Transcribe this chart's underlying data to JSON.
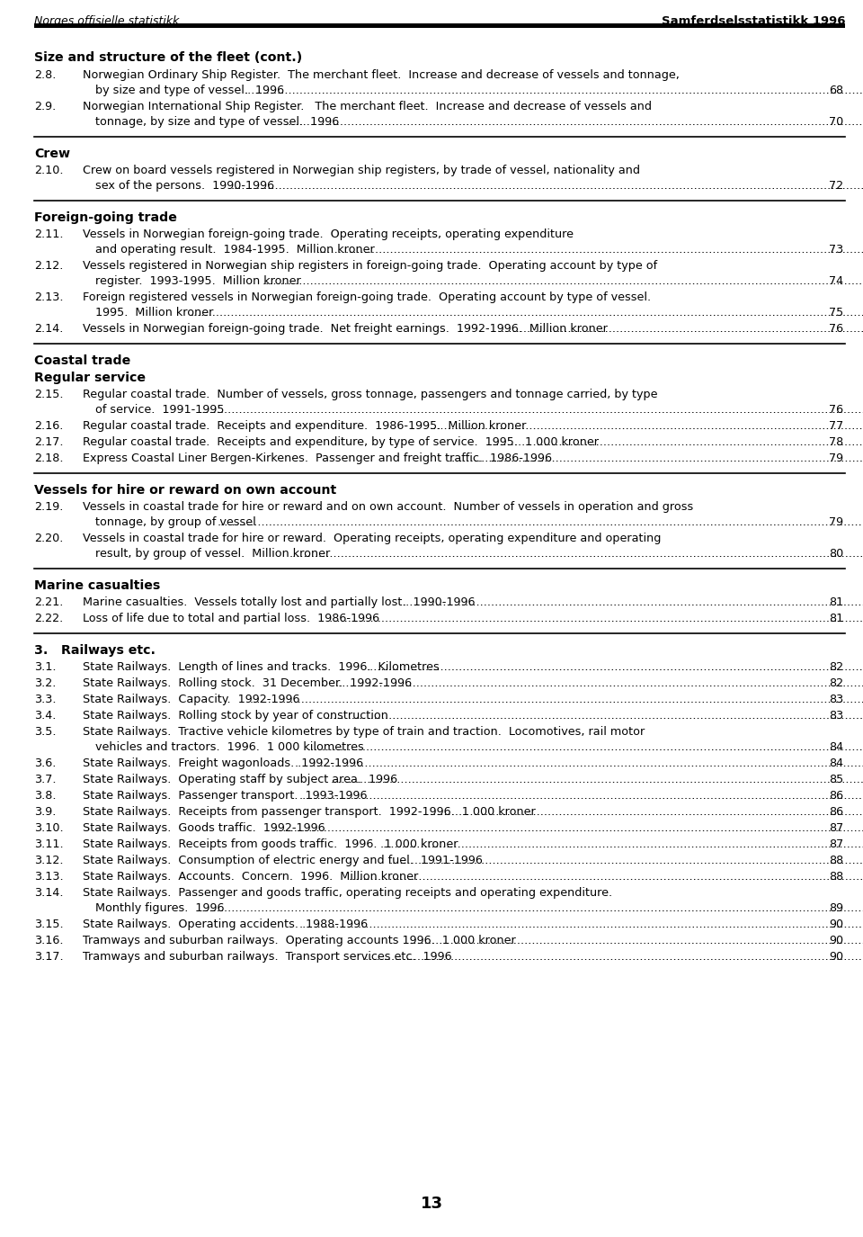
{
  "header_left": "Norges offisielle statistikk",
  "header_right": "Samferdselsstatistikk 1996",
  "page_number": "13",
  "bg_color": "#ffffff",
  "sections": [
    {
      "type": "section_header",
      "text": "Size and structure of the fleet (cont.)"
    },
    {
      "type": "entry",
      "number": "2.8.",
      "lines": [
        "Norwegian Ordinary Ship Register.  The merchant fleet.  Increase and decrease of vessels and tonnage,",
        "by size and type of vessel.  1996"
      ],
      "page": "68"
    },
    {
      "type": "entry",
      "number": "2.9.",
      "lines": [
        "Norwegian International Ship Register.   The merchant fleet.  Increase and decrease of vessels and",
        "tonnage, by size and type of vessel.  1996"
      ],
      "page": "70"
    },
    {
      "type": "separator"
    },
    {
      "type": "category_header",
      "text": "Crew"
    },
    {
      "type": "entry",
      "number": "2.10.",
      "lines": [
        "Crew on board vessels registered in Norwegian ship registers, by trade of vessel, nationality and",
        "sex of the persons.  1990-1996"
      ],
      "page": "72"
    },
    {
      "type": "separator"
    },
    {
      "type": "category_header",
      "text": "Foreign-going trade"
    },
    {
      "type": "entry",
      "number": "2.11.",
      "lines": [
        "Vessels in Norwegian foreign-going trade.  Operating receipts, operating expenditure",
        "and operating result.  1984-1995.  Million kroner"
      ],
      "page": "73"
    },
    {
      "type": "entry",
      "number": "2.12.",
      "lines": [
        "Vessels registered in Norwegian ship registers in foreign-going trade.  Operating account by type of",
        "register.  1993-1995.  Million kroner"
      ],
      "page": "74"
    },
    {
      "type": "entry",
      "number": "2.13.",
      "lines": [
        "Foreign registered vessels in Norwegian foreign-going trade.  Operating account by type of vessel.",
        "1995.  Million kroner"
      ],
      "page": "75"
    },
    {
      "type": "entry",
      "number": "2.14.",
      "lines": [
        "Vessels in Norwegian foreign-going trade.  Net freight earnings.  1992-1996.  Million kroner"
      ],
      "page": "76"
    },
    {
      "type": "separator"
    },
    {
      "type": "category_header",
      "text": "Coastal trade"
    },
    {
      "type": "category_header2",
      "text": "Regular service"
    },
    {
      "type": "entry",
      "number": "2.15.",
      "lines": [
        "Regular coastal trade.  Number of vessels, gross tonnage, passengers and tonnage carried, by type",
        "of service.  1991-1995"
      ],
      "page": "76"
    },
    {
      "type": "entry",
      "number": "2.16.",
      "lines": [
        "Regular coastal trade.  Receipts and expenditure.  1986-1995.  Million kroner"
      ],
      "page": "77"
    },
    {
      "type": "entry",
      "number": "2.17.",
      "lines": [
        "Regular coastal trade.  Receipts and expenditure, by type of service.  1995.  1 000 kroner"
      ],
      "page": "78"
    },
    {
      "type": "entry",
      "number": "2.18.",
      "lines": [
        "Express Coastal Liner Bergen-Kirkenes.  Passenger and freight traffic.  1986-1996"
      ],
      "page": "79"
    },
    {
      "type": "separator"
    },
    {
      "type": "category_header",
      "text": "Vessels for hire or reward on own account"
    },
    {
      "type": "entry",
      "number": "2.19.",
      "lines": [
        "Vessels in coastal trade for hire or reward and on own account.  Number of vessels in operation and gross",
        "tonnage, by group of vessel"
      ],
      "page": "79"
    },
    {
      "type": "entry",
      "number": "2.20.",
      "lines": [
        "Vessels in coastal trade for hire or reward.  Operating receipts, operating expenditure and operating",
        "result, by group of vessel.  Million kroner"
      ],
      "page": "80"
    },
    {
      "type": "separator"
    },
    {
      "type": "category_header",
      "text": "Marine casualties"
    },
    {
      "type": "entry",
      "number": "2.21.",
      "lines": [
        "Marine casualties.  Vessels totally lost and partially lost.  1990-1996"
      ],
      "page": "81"
    },
    {
      "type": "entry",
      "number": "2.22.",
      "lines": [
        "Loss of life due to total and partial loss.  1986-1996"
      ],
      "page": "81"
    },
    {
      "type": "separator"
    },
    {
      "type": "number_section_header",
      "number": "3.",
      "text": "Railways etc."
    },
    {
      "type": "entry",
      "number": "3.1.",
      "lines": [
        "State Railways.  Length of lines and tracks.  1996.  Kilometres"
      ],
      "page": "82"
    },
    {
      "type": "entry",
      "number": "3.2.",
      "lines": [
        "State Railways.  Rolling stock.  31 December.  1992-1996"
      ],
      "page": "82"
    },
    {
      "type": "entry",
      "number": "3.3.",
      "lines": [
        "State Railways.  Capacity.  1992-1996"
      ],
      "page": "83"
    },
    {
      "type": "entry",
      "number": "3.4.",
      "lines": [
        "State Railways.  Rolling stock by year of construction"
      ],
      "page": "83"
    },
    {
      "type": "entry",
      "number": "3.5.",
      "lines": [
        "State Railways.  Tractive vehicle kilometres by type of train and traction.  Locomotives, rail motor",
        "vehicles and tractors.  1996.  1 000 kilometres"
      ],
      "page": "84"
    },
    {
      "type": "entry",
      "number": "3.6.",
      "lines": [
        "State Railways.  Freight wagonloads.  1992-1996"
      ],
      "page": "84"
    },
    {
      "type": "entry",
      "number": "3.7.",
      "lines": [
        "State Railways.  Operating staff by subject area.  1996"
      ],
      "page": "85"
    },
    {
      "type": "entry",
      "number": "3.8.",
      "lines": [
        "State Railways.  Passenger transport.  1993-1996"
      ],
      "page": "86"
    },
    {
      "type": "entry",
      "number": "3.9.",
      "lines": [
        "State Railways.  Receipts from passenger transport.  1992-1996.  1 000 kroner"
      ],
      "page": "86"
    },
    {
      "type": "entry",
      "number": "3.10.",
      "lines": [
        "State Railways.  Goods traffic.  1992-1996"
      ],
      "page": "87"
    },
    {
      "type": "entry",
      "number": "3.11.",
      "lines": [
        "State Railways.  Receipts from goods traffic.  1996.  1 000 kroner"
      ],
      "page": "87"
    },
    {
      "type": "entry",
      "number": "3.12.",
      "lines": [
        "State Railways.  Consumption of electric energy and fuel.  1991-1996"
      ],
      "page": "88"
    },
    {
      "type": "entry",
      "number": "3.13.",
      "lines": [
        "State Railways.  Accounts.  Concern.  1996.  Million kroner"
      ],
      "page": "88"
    },
    {
      "type": "entry",
      "number": "3.14.",
      "lines": [
        "State Railways.  Passenger and goods traffic, operating receipts and operating expenditure.",
        "Monthly figures.  1996"
      ],
      "page": "89"
    },
    {
      "type": "entry",
      "number": "3.15.",
      "lines": [
        "State Railways.  Operating accidents.  1988-1996"
      ],
      "page": "90"
    },
    {
      "type": "entry",
      "number": "3.16.",
      "lines": [
        "Tramways and suburban railways.  Operating accounts 1996.  1 000 kroner"
      ],
      "page": "90"
    },
    {
      "type": "entry",
      "number": "3.17.",
      "lines": [
        "Tramways and suburban railways.  Transport services etc.  1996"
      ],
      "page": "90"
    }
  ]
}
